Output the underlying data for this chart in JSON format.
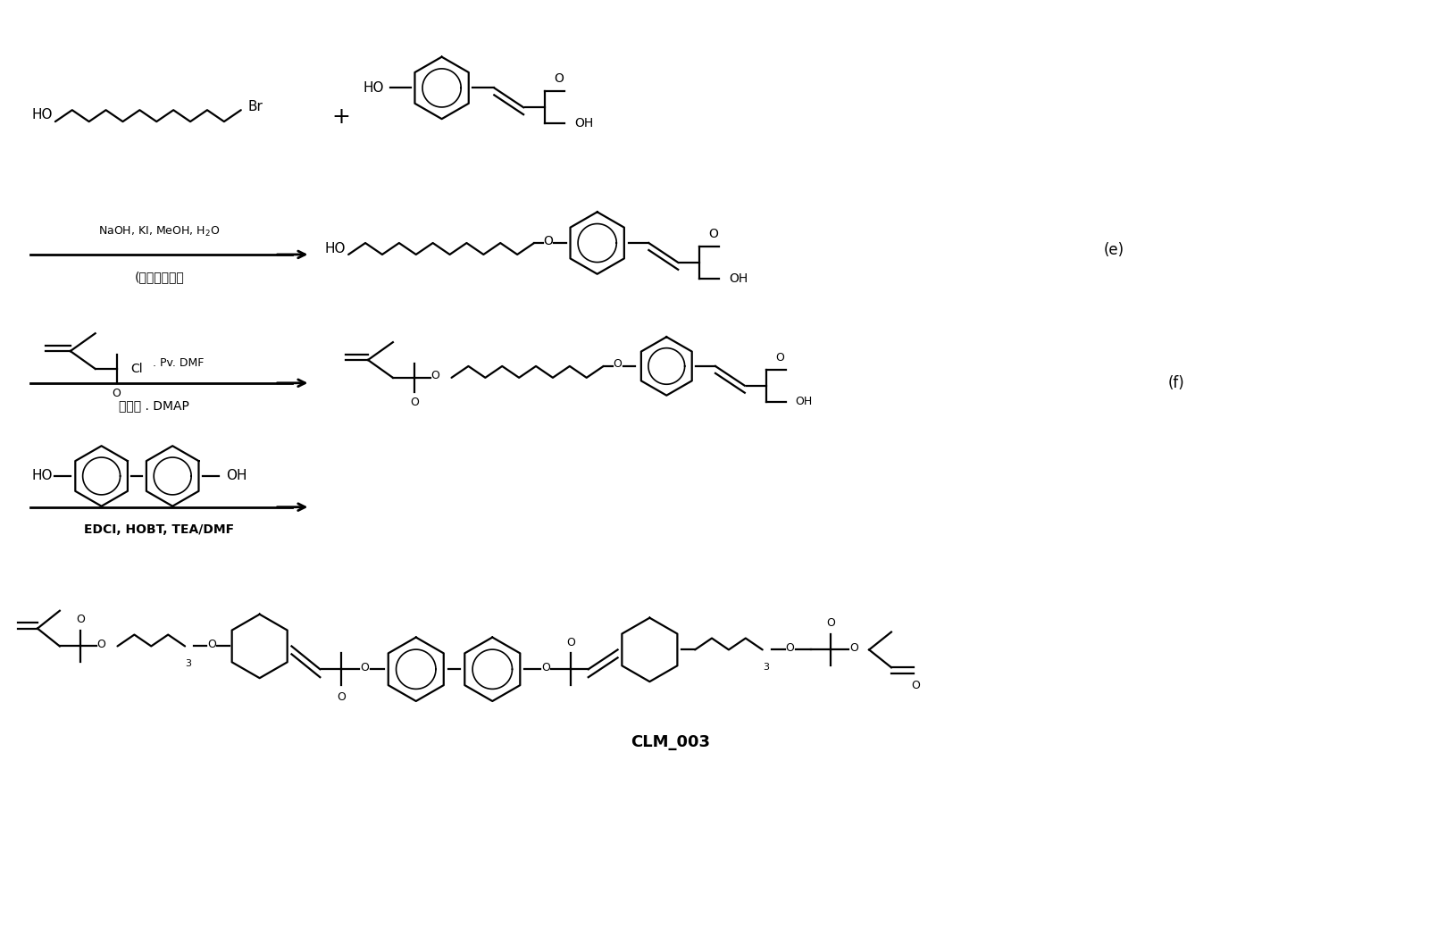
{
  "bg_color": "#ffffff",
  "line_color": "#000000",
  "title": "CLM_003",
  "row2_arrow_top": "NaOH, KI, MeOH, H$_2$O",
  "row2_arrow_bottom": "(回流，过夜）",
  "row2_tag": "(e)",
  "row3_tag": "(f)",
  "row3_catalyst": "冂化剂 . DMAP",
  "row4_arrow": "EDCI, HOBT, TEA/DMF",
  "fig_width": 16.0,
  "fig_height": 10.58,
  "dpi": 100
}
